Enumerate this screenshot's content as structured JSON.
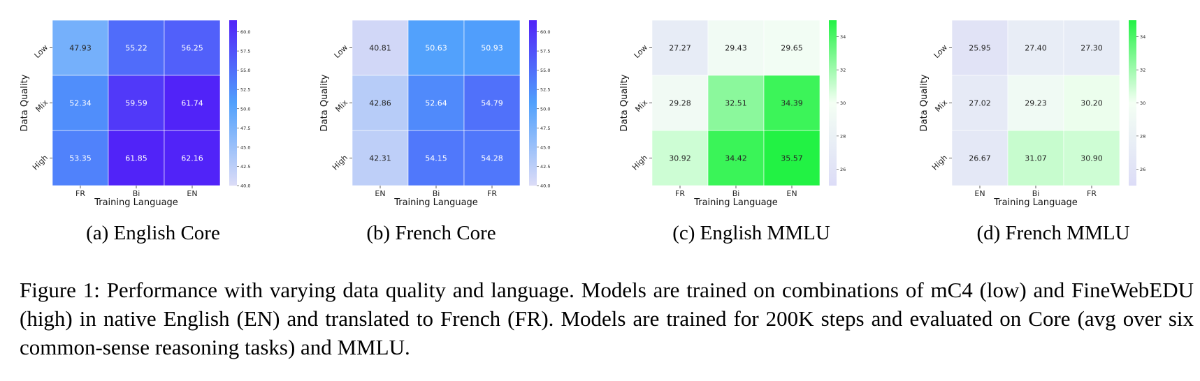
{
  "chart_data": [
    {
      "type": "heatmap",
      "title": "",
      "xlabel": "Training Language",
      "ylabel": "Data Quality",
      "x": [
        "FR",
        "Bi",
        "EN"
      ],
      "y": [
        "Low",
        "Mix",
        "High"
      ],
      "values": [
        [
          47.93,
          55.22,
          56.25
        ],
        [
          52.34,
          59.59,
          61.74
        ],
        [
          53.35,
          61.85,
          62.16
        ]
      ],
      "value_labels": [
        [
          "47.93",
          "55.22",
          "56.25"
        ],
        [
          "52.34",
          "59.59",
          "61.74"
        ],
        [
          "53.35",
          "61.85",
          "62.16"
        ]
      ],
      "colorbar": {
        "min": 40.0,
        "max": 61.5,
        "ticks": [
          "40.0",
          "42.5",
          "45.0",
          "47.5",
          "50.0",
          "52.5",
          "55.0",
          "57.5",
          "60.0"
        ],
        "colors": [
          "#dcdcf7",
          "#50a0fc",
          "#5123f8"
        ]
      },
      "subcaption": "(a) English Core"
    },
    {
      "type": "heatmap",
      "title": "",
      "xlabel": "Training Language",
      "ylabel": "Data Quality",
      "x": [
        "EN",
        "Bi",
        "FR"
      ],
      "y": [
        "Low",
        "Mix",
        "High"
      ],
      "values": [
        [
          40.81,
          50.63,
          50.93
        ],
        [
          42.86,
          52.64,
          54.79
        ],
        [
          42.31,
          54.15,
          54.28
        ]
      ],
      "value_labels": [
        [
          "40.81",
          "50.63",
          "50.93"
        ],
        [
          "42.86",
          "52.64",
          "54.79"
        ],
        [
          "42.31",
          "54.15",
          "54.28"
        ]
      ],
      "colorbar": {
        "min": 40.0,
        "max": 61.5,
        "ticks": [
          "40.0",
          "42.5",
          "45.0",
          "47.5",
          "50.0",
          "52.5",
          "55.0",
          "57.5",
          "60.0"
        ],
        "colors": [
          "#dcdcf7",
          "#50a0fc",
          "#5123f8"
        ]
      },
      "subcaption": "(b) French Core"
    },
    {
      "type": "heatmap",
      "title": "",
      "xlabel": "Training Language",
      "ylabel": "Data Quality",
      "x": [
        "FR",
        "Bi",
        "EN"
      ],
      "y": [
        "Low",
        "Mix",
        "High"
      ],
      "values": [
        [
          27.27,
          29.43,
          29.65
        ],
        [
          29.28,
          32.51,
          34.39
        ],
        [
          30.92,
          34.42,
          35.57
        ]
      ],
      "value_labels": [
        [
          "27.27",
          "29.43",
          "29.65"
        ],
        [
          "29.28",
          "32.51",
          "34.39"
        ],
        [
          "30.92",
          "34.42",
          "35.57"
        ]
      ],
      "colorbar": {
        "min": 25.0,
        "max": 35.0,
        "ticks": [
          "26",
          "28",
          "30",
          "32",
          "34"
        ],
        "colors": [
          "#dcdcf7",
          "#f4fff4",
          "#22f244"
        ]
      },
      "subcaption": "(c) English MMLU"
    },
    {
      "type": "heatmap",
      "title": "",
      "xlabel": "Training Language",
      "ylabel": "Data Quality",
      "x": [
        "EN",
        "Bi",
        "FR"
      ],
      "y": [
        "Low",
        "Mix",
        "High"
      ],
      "values": [
        [
          25.95,
          27.4,
          27.3
        ],
        [
          27.02,
          29.23,
          30.2
        ],
        [
          26.67,
          31.07,
          30.9
        ]
      ],
      "value_labels": [
        [
          "25.95",
          "27.40",
          "27.30"
        ],
        [
          "27.02",
          "29.23",
          "30.20"
        ],
        [
          "26.67",
          "31.07",
          "30.90"
        ]
      ],
      "colorbar": {
        "min": 25.0,
        "max": 35.0,
        "ticks": [
          "26",
          "28",
          "30",
          "32",
          "34"
        ],
        "colors": [
          "#dcdcf7",
          "#f4fff4",
          "#22f244"
        ]
      },
      "subcaption": "(d) French MMLU"
    }
  ],
  "figure_caption": "Figure 1: Performance with varying data quality and language. Models are trained on combinations of mC4 (low) and FineWebEDU (high) in native English (EN) and translated to French (FR). Models are trained for 200K steps and evaluated on Core (avg over six common-sense reasoning tasks) and MMLU."
}
